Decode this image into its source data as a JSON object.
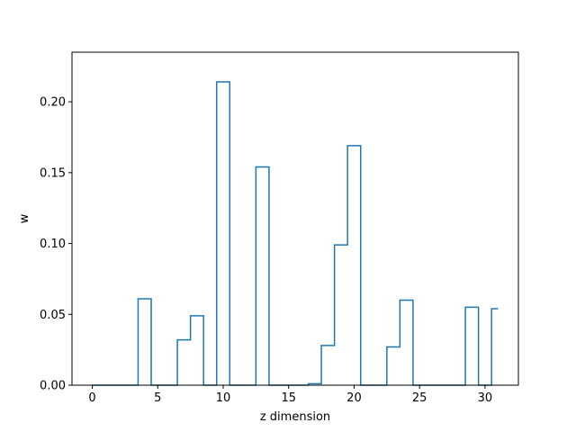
{
  "chart_data": {
    "type": "line",
    "drawstyle": "steps-mid",
    "title": "",
    "xlabel": "z dimension",
    "ylabel": "w",
    "xlim": [
      -1.55,
      32.55
    ],
    "ylim": [
      0,
      0.235
    ],
    "xticks": [
      0,
      5,
      10,
      15,
      20,
      25,
      30
    ],
    "yticks": [
      0.0,
      0.05,
      0.1,
      0.15,
      0.2
    ],
    "ytick_labels": [
      "0.00",
      "0.05",
      "0.10",
      "0.15",
      "0.20"
    ],
    "grid": false,
    "series": [
      {
        "color": "#1f77b4",
        "x": [
          0,
          1,
          2,
          3,
          4,
          5,
          6,
          7,
          8,
          9,
          10,
          11,
          12,
          13,
          14,
          15,
          16,
          17,
          18,
          19,
          20,
          21,
          22,
          23,
          24,
          25,
          26,
          27,
          28,
          29,
          30,
          31
        ],
        "y": [
          0,
          0,
          0,
          0,
          0.061,
          0,
          0,
          0.032,
          0.049,
          0,
          0.214,
          0,
          0,
          0.154,
          0,
          0,
          0,
          0.001,
          0.028,
          0.099,
          0.169,
          0,
          0,
          0.027,
          0.06,
          0,
          0,
          0,
          0,
          0.055,
          0,
          0.054
        ]
      }
    ]
  }
}
